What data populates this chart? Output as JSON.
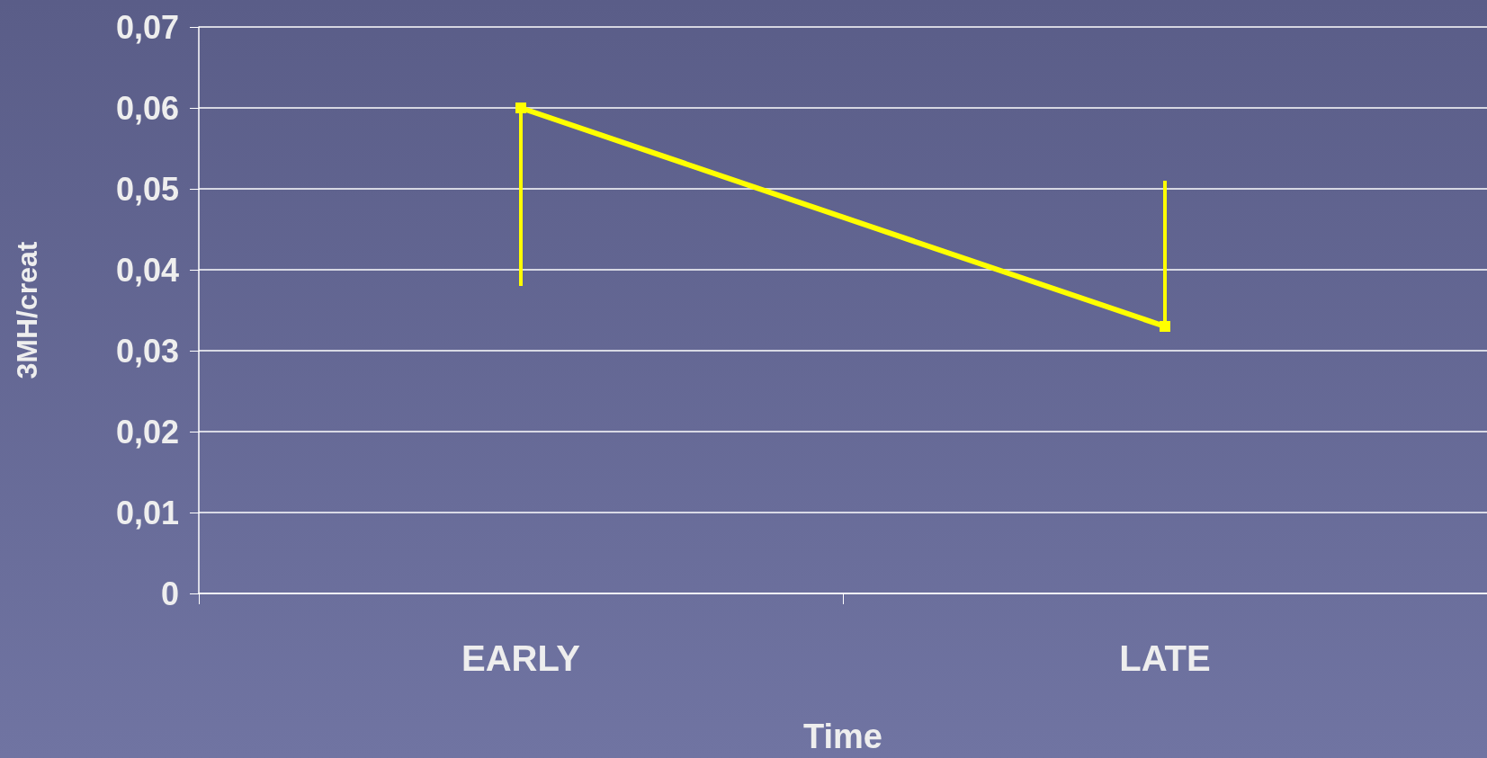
{
  "chart_data": {
    "type": "line",
    "xlabel": "Time",
    "ylabel": "3MH/creat",
    "categories": [
      "EARLY",
      "LATE"
    ],
    "series": [
      {
        "color": "#ffff00",
        "values": [
          0.06,
          0.033
        ],
        "errors": [
          [
            0.038,
            0.06
          ],
          [
            0.033,
            0.051
          ]
        ]
      }
    ],
    "ylim": [
      0,
      0.07
    ],
    "yticks": [
      0,
      {
        "value": 0.01,
        "label": "0,01"
      },
      {
        "value": 0.02,
        "label": "0,02"
      },
      {
        "value": 0.03,
        "label": "0,03"
      },
      {
        "value": 0.04,
        "label": "0,04"
      },
      {
        "value": 0.05,
        "label": "0,05"
      },
      {
        "value": 0.06,
        "label": "0,06"
      },
      {
        "value": 0.07,
        "label": "0,07"
      }
    ],
    "grid": "y",
    "marker": "square",
    "line_style": "solid"
  }
}
